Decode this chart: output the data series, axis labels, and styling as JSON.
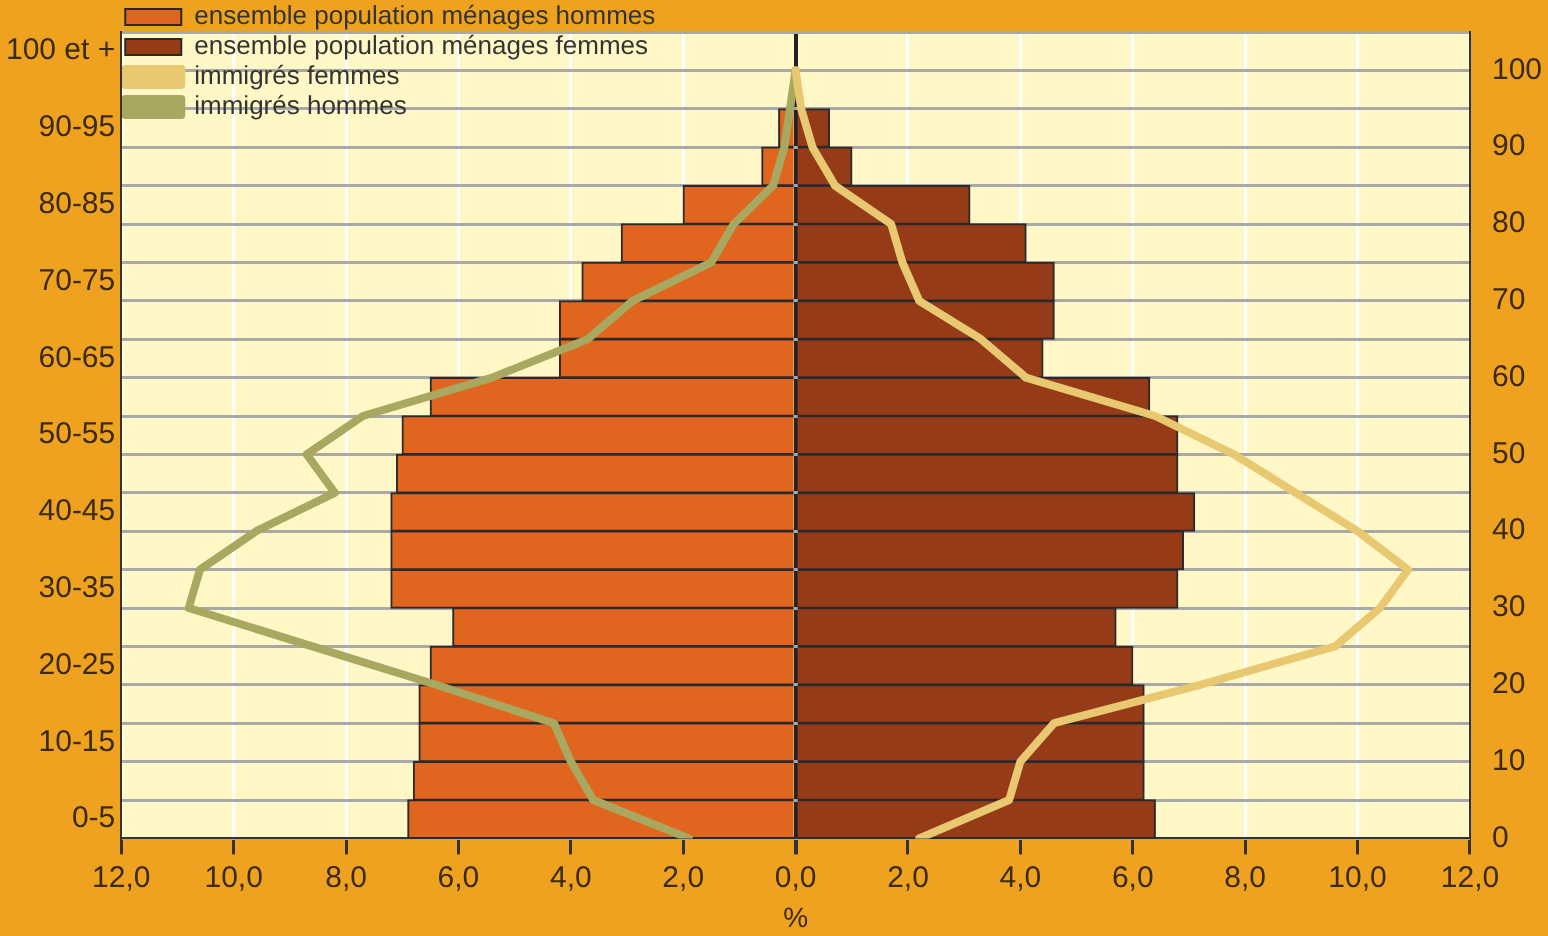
{
  "chart_data": {
    "type": "bar",
    "orientation": "horizontal",
    "xlabel": "%",
    "categories": [
      "100 et +",
      null,
      "90-95",
      null,
      "80-85",
      null,
      "70-75",
      null,
      "60-65",
      null,
      "50-55",
      null,
      "40-45",
      null,
      "30-35",
      null,
      "20-25",
      null,
      "10-15",
      null,
      "0-5"
    ],
    "series": [
      {
        "name": "ensemble population ménages hommes",
        "color": "#e0651e",
        "values": [
          0,
          0,
          -0.3,
          -0.6,
          -2.0,
          -3.1,
          -3.8,
          -4.2,
          -4.2,
          -6.5,
          -7.0,
          -7.1,
          -7.2,
          -7.2,
          -7.2,
          -6.1,
          -6.5,
          -6.7,
          -6.7,
          -6.8,
          -6.9
        ]
      },
      {
        "name": "ensemble population ménages femmes",
        "color": "#953b18",
        "values": [
          0,
          0,
          0.6,
          1.0,
          3.1,
          4.1,
          4.6,
          4.6,
          4.4,
          6.3,
          6.8,
          6.8,
          7.1,
          6.9,
          6.8,
          5.7,
          6.0,
          6.2,
          6.2,
          6.2,
          6.4
        ]
      },
      {
        "name": "immigrés femmes",
        "type": "line",
        "color": "#e8c870",
        "values": [
          0,
          0.1,
          0.3,
          0.7,
          1.7,
          1.9,
          2.2,
          3.3,
          4.1,
          6.4,
          7.8,
          8.9,
          10.0,
          10.9,
          10.4,
          9.6,
          7.2,
          4.6,
          4.0,
          3.8,
          2.2
        ]
      },
      {
        "name": "immigrés hommes",
        "type": "line",
        "color": "#a8a860",
        "values": [
          0,
          -0.1,
          -0.2,
          -0.4,
          -1.1,
          -1.5,
          -2.9,
          -3.7,
          -5.4,
          -7.7,
          -8.7,
          -8.2,
          -9.6,
          -10.6,
          -10.8,
          -8.6,
          -6.4,
          -4.3,
          -4.0,
          -3.6,
          -1.9
        ]
      }
    ],
    "xlim": [
      -12,
      12
    ],
    "xticks": [
      {
        "value": -12,
        "label": "12,0"
      },
      {
        "value": -10,
        "label": "10,0"
      },
      {
        "value": -8,
        "label": "8,0"
      },
      {
        "value": -6,
        "label": "6,0"
      },
      {
        "value": -4,
        "label": "4,0"
      },
      {
        "value": -2,
        "label": "2,0"
      },
      {
        "value": 0,
        "label": "0,0"
      },
      {
        "value": 2,
        "label": "2,0"
      },
      {
        "value": 4,
        "label": "4,0"
      },
      {
        "value": 6,
        "label": "6,0"
      },
      {
        "value": 8,
        "label": "8,0"
      },
      {
        "value": 10,
        "label": "10,0"
      },
      {
        "value": 12,
        "label": "12,0"
      }
    ],
    "y2lim": [
      0,
      105
    ],
    "y2ticks": [
      0,
      10,
      20,
      30,
      40,
      50,
      60,
      70,
      80,
      90,
      100
    ],
    "stacked": true,
    "grid": true,
    "legend": "top left",
    "marker": "none",
    "line_style": "solid"
  }
}
